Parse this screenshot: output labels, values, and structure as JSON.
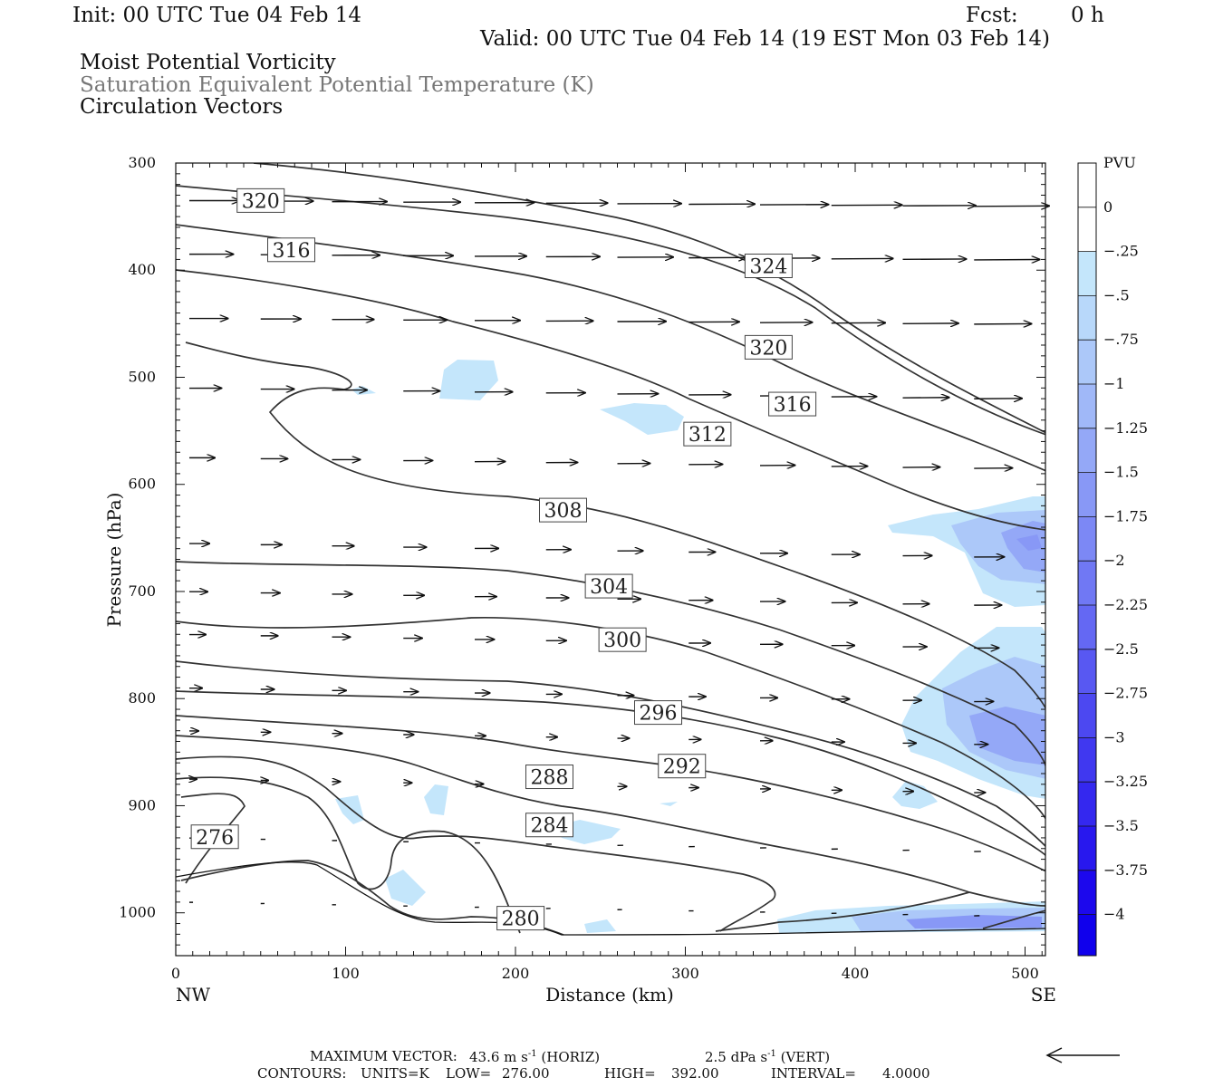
{
  "header": {
    "init": "Init: 00 UTC Tue 04 Feb 14",
    "fcst_label": "Fcst:",
    "fcst_value": "0 h",
    "valid": "Valid: 00 UTC Tue 04 Feb 14 (19 EST Mon 03 Feb 14)",
    "field1": "Moist Potential Vorticity",
    "field2": "Saturation Equivalent Potential Temperature (K)",
    "field3": "Circulation Vectors"
  },
  "chart_data": {
    "type": "cross-section contour",
    "xlabel": "Distance (km)",
    "ylabel": "Pressure (hPa)",
    "xlim": [
      0,
      512
    ],
    "ylim": [
      1040,
      300
    ],
    "xticks": [
      "0",
      "100",
      "200",
      "300",
      "400",
      "500"
    ],
    "yticks": [
      "300",
      "400",
      "500",
      "600",
      "700",
      "800",
      "900",
      "1000"
    ],
    "endpoints": {
      "left": "NW",
      "right": "SE"
    },
    "colorbar": {
      "title": "PVU",
      "labels": [
        "0",
        "-.25",
        "-.5",
        "-.75",
        "-1",
        "-1.25",
        "-1.5",
        "-1.75",
        "-2",
        "-2.25",
        "-2.5",
        "-2.75",
        "-3",
        "-3.25",
        "-3.5",
        "-3.75",
        "-4"
      ],
      "colors": [
        "#ffffff",
        "#ffffff",
        "#c4e6fb",
        "#b8d8fa",
        "#acc8f9",
        "#a0b8f8",
        "#94a8f7",
        "#8898f6",
        "#7c88f5",
        "#7078f4",
        "#6468f3",
        "#5858f2",
        "#4c48f1",
        "#4038f0",
        "#3428ef",
        "#2818ee",
        "#1c08ed",
        "#1000ec"
      ]
    },
    "contour_labels": [
      {
        "text": "320",
        "x": 50,
        "p": 335
      },
      {
        "text": "316",
        "x": 68,
        "p": 381
      },
      {
        "text": "324",
        "x": 349,
        "p": 396
      },
      {
        "text": "320",
        "x": 349,
        "p": 472
      },
      {
        "text": "316",
        "x": 363,
        "p": 525
      },
      {
        "text": "312",
        "x": 313,
        "p": 553
      },
      {
        "text": "308",
        "x": 228,
        "p": 624
      },
      {
        "text": "304",
        "x": 255,
        "p": 695
      },
      {
        "text": "300",
        "x": 263,
        "p": 745
      },
      {
        "text": "296",
        "x": 284,
        "p": 813
      },
      {
        "text": "292",
        "x": 298,
        "p": 863
      },
      {
        "text": "288",
        "x": 220,
        "p": 873
      },
      {
        "text": "284",
        "x": 220,
        "p": 918
      },
      {
        "text": "280",
        "x": 203,
        "p": 1005
      },
      {
        "text": "276",
        "x": 23,
        "p": 929
      }
    ],
    "contour_info": {
      "units": "K",
      "low": "276.00",
      "high": "392.00",
      "interval": "4.0000"
    },
    "max_vector": {
      "horiz": "43.6",
      "vert": "2.5"
    }
  },
  "footer": {
    "max_vector_label": "MAXIMUM VECTOR:",
    "horiz_value": "43.6 m s",
    "horiz_unit": "(HORIZ)",
    "vert_value": "2.5 dPa s",
    "vert_unit": "(VERT)",
    "exp": "-1",
    "contours_label": "CONTOURS:",
    "units_text": "UNITS=K",
    "low_text": "LOW=",
    "low_value": "276.00",
    "high_text": "HIGH=",
    "high_value": "392.00",
    "interval_text": "INTERVAL=",
    "interval_value": "4.0000"
  }
}
